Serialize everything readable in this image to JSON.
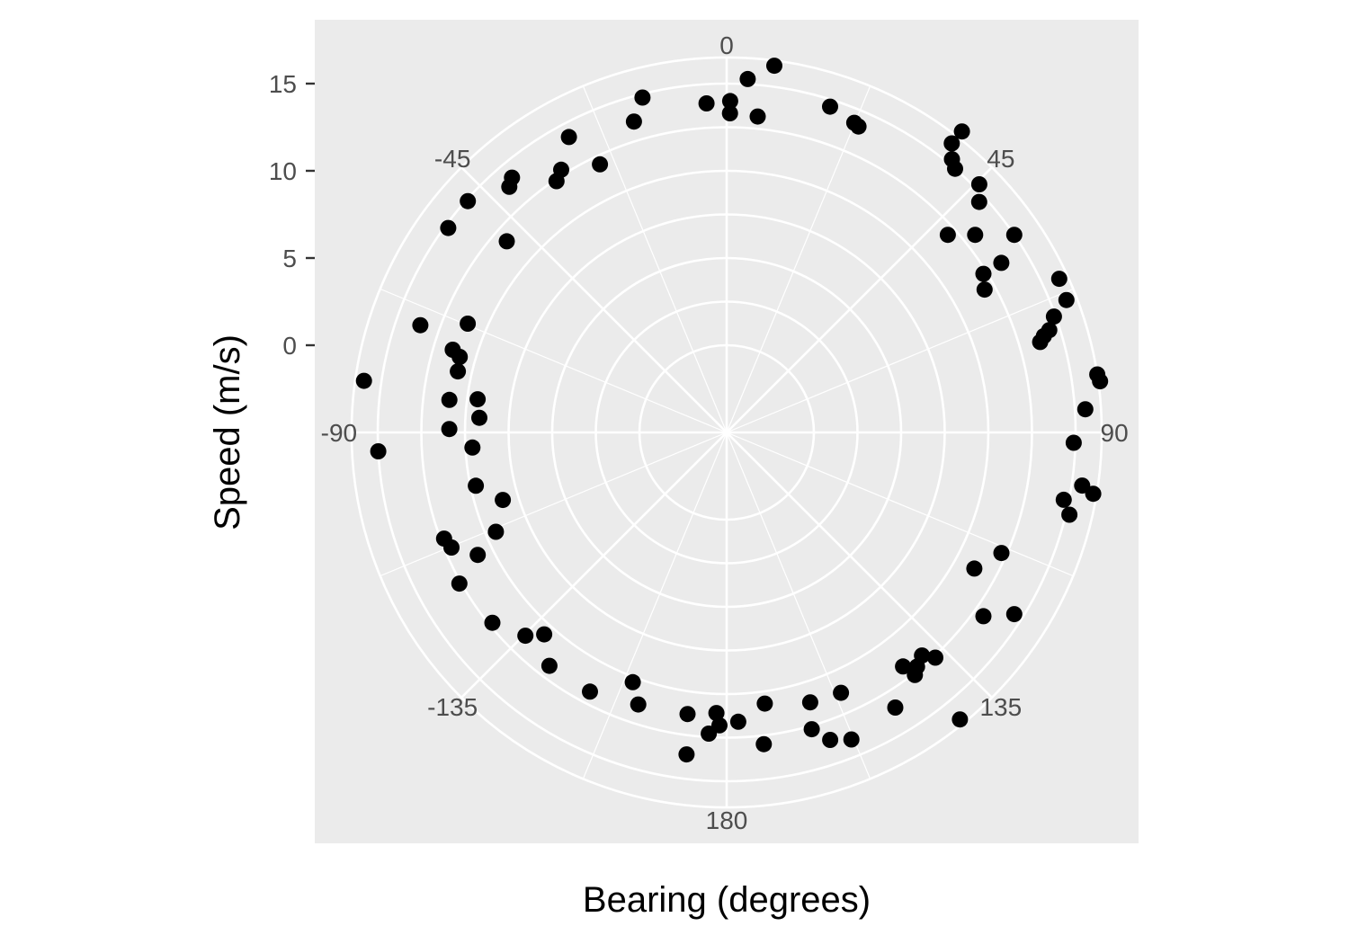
{
  "chart_data": {
    "type": "scatter",
    "coord": "polar",
    "xlabel": "Bearing (degrees)",
    "ylabel": "Speed (m/s)",
    "theta_ticks": [
      0,
      45,
      90,
      135,
      180,
      -135,
      -90,
      -45
    ],
    "theta_tick_labels": [
      "0",
      "45",
      "90",
      "135",
      "180",
      "-135",
      "-90",
      "-45"
    ],
    "r_ticks": [
      0,
      5,
      10,
      15
    ],
    "r_tick_labels": [
      "0",
      "5",
      "10",
      "15"
    ],
    "r_range": [
      -5,
      16.5
    ],
    "grid": true,
    "colors": {
      "panel": "#ebebeb",
      "grid": "#ffffff",
      "point": "#000000"
    },
    "points": [
      [
        3.4,
        15.3
      ],
      [
        0.6,
        14.0
      ],
      [
        -3.5,
        13.9
      ],
      [
        7.4,
        16.2
      ],
      [
        17.6,
        14.6
      ],
      [
        22.4,
        14.2
      ],
      [
        23.3,
        14.1
      ],
      [
        38.0,
        16.9
      ],
      [
        37.9,
        16.0
      ],
      [
        39.5,
        15.3
      ],
      [
        40.9,
        15.0
      ],
      [
        45.5,
        15.3
      ],
      [
        0.6,
        13.3
      ],
      [
        5.6,
        13.2
      ],
      [
        -14.1,
        14.8
      ],
      [
        -16.6,
        13.6
      ],
      [
        -28.1,
        14.2
      ],
      [
        -32.2,
        12.8
      ],
      [
        -34.1,
        12.4
      ],
      [
        -25.3,
        12.0
      ],
      [
        47.6,
        14.6
      ],
      [
        55.5,
        15.0
      ],
      [
        51.5,
        13.2
      ],
      [
        48.2,
        12.0
      ],
      [
        58.3,
        13.5
      ],
      [
        58.3,
        12.3
      ],
      [
        61.0,
        11.9
      ],
      [
        65.2,
        16.0
      ],
      [
        68.7,
        15.9
      ],
      [
        70.5,
        14.9
      ],
      [
        72.4,
        14.4
      ],
      [
        73.1,
        14.0
      ],
      [
        73.9,
        13.7
      ],
      [
        81.1,
        16.5
      ],
      [
        82.2,
        16.6
      ],
      [
        86.3,
        15.6
      ],
      [
        -40.1,
        14.1
      ],
      [
        -41.5,
        13.8
      ],
      [
        -48.2,
        14.9
      ],
      [
        -53.7,
        14.8
      ],
      [
        -49.0,
        11.7
      ],
      [
        -70.7,
        13.6
      ],
      [
        -67.2,
        11.1
      ],
      [
        -73.2,
        11.4
      ],
      [
        -74.2,
        10.9
      ],
      [
        -77.2,
        10.8
      ],
      [
        -82.4,
        9.4
      ],
      [
        -81.9,
        16.0
      ],
      [
        -86.6,
        9.2
      ],
      [
        -83.3,
        11.0
      ],
      [
        -93.1,
        15.0
      ],
      [
        -89.3,
        10.9
      ],
      [
        -93.4,
        9.6
      ],
      [
        -102.0,
        9.7
      ],
      [
        -106.8,
        8.4
      ],
      [
        -113.3,
        9.4
      ],
      [
        -112.7,
        12.1
      ],
      [
        -110.6,
        12.3
      ],
      [
        -116.2,
        10.9
      ],
      [
        -119.5,
        12.6
      ],
      [
        -135.3,
        11.4
      ],
      [
        -137.9,
        10.6
      ],
      [
        -129.1,
        12.3
      ],
      [
        -142.8,
        11.8
      ],
      [
        -152.2,
        11.8
      ],
      [
        -162.0,
        11.4
      ],
      [
        -159.4,
        10.3
      ],
      [
        -172.9,
        13.6
      ],
      [
        -176.6,
        12.3
      ],
      [
        -172.1,
        11.3
      ],
      [
        -178.6,
        11.8
      ],
      [
        -177.9,
        11.1
      ],
      [
        177.7,
        11.6
      ],
      [
        173.2,
        13.0
      ],
      [
        172.0,
        10.7
      ],
      [
        164.0,
        12.7
      ],
      [
        161.4,
        13.6
      ],
      [
        162.8,
        11.2
      ],
      [
        157.9,
        14.0
      ],
      [
        156.3,
        11.3
      ],
      [
        148.5,
        13.5
      ],
      [
        142.2,
        12.6
      ],
      [
        140.9,
        12.3
      ],
      [
        143.0,
        11.8
      ],
      [
        138.8,
        12.0
      ],
      [
        137.2,
        12.6
      ],
      [
        140.9,
        16.2
      ],
      [
        122.3,
        14.5
      ],
      [
        125.6,
        13.1
      ],
      [
        118.8,
        11.2
      ],
      [
        113.7,
        12.2
      ],
      [
        103.5,
        15.2
      ],
      [
        101.3,
        14.7
      ],
      [
        99.5,
        16.3
      ],
      [
        98.5,
        15.6
      ],
      [
        91.7,
        14.9
      ]
    ]
  }
}
